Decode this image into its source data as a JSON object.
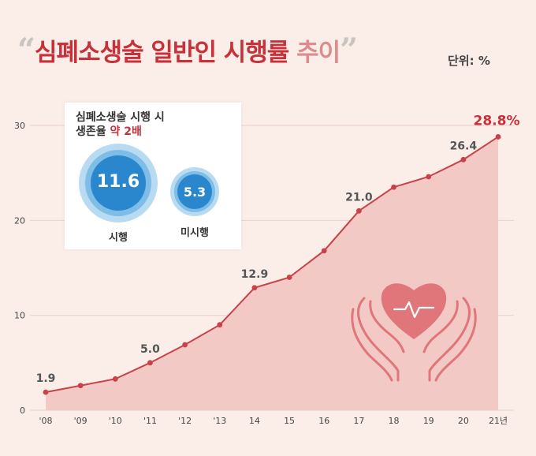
{
  "title": {
    "open_quote": "“",
    "main": "심폐소생술 일반인 시행률",
    "accent": "추이",
    "close_quote": "”"
  },
  "unit": "단위: %",
  "inset": {
    "title_line1": "심폐소생술 시행 시",
    "title_line2_pre": "생존율 ",
    "title_line2_hl": "약 2배",
    "bubbles": [
      {
        "label": "시행",
        "value": "11.6"
      },
      {
        "label": "미시행",
        "value": "5.3"
      }
    ]
  },
  "colors": {
    "line": "#c9424a",
    "area": "#f2c9c5",
    "highlight": "#c6313a",
    "bubble": "#2b87cd"
  },
  "icon": "heart-in-hands-icon",
  "chart_data": {
    "type": "area",
    "title": "",
    "xlabel": "",
    "ylabel": "",
    "unit": "%",
    "ylim": [
      0,
      30
    ],
    "yticks": [
      0,
      10,
      20,
      30
    ],
    "grid": true,
    "categories": [
      "'08",
      "'09",
      "'10",
      "'11",
      "'12",
      "'13",
      "14",
      "15",
      "16",
      "17",
      "18",
      "19",
      "20",
      "21년"
    ],
    "series": [
      {
        "name": "",
        "values": [
          1.9,
          2.6,
          3.3,
          5.0,
          6.9,
          9.0,
          12.9,
          14.0,
          16.8,
          21.0,
          23.5,
          24.6,
          26.4,
          28.8
        ]
      }
    ],
    "data_labels": [
      {
        "index": 0,
        "text": "1.9"
      },
      {
        "index": 3,
        "text": "5.0"
      },
      {
        "index": 6,
        "text": "12.9"
      },
      {
        "index": 9,
        "text": "21.0"
      },
      {
        "index": 12,
        "text": "26.4"
      },
      {
        "index": 13,
        "text": "28.8%"
      }
    ]
  }
}
